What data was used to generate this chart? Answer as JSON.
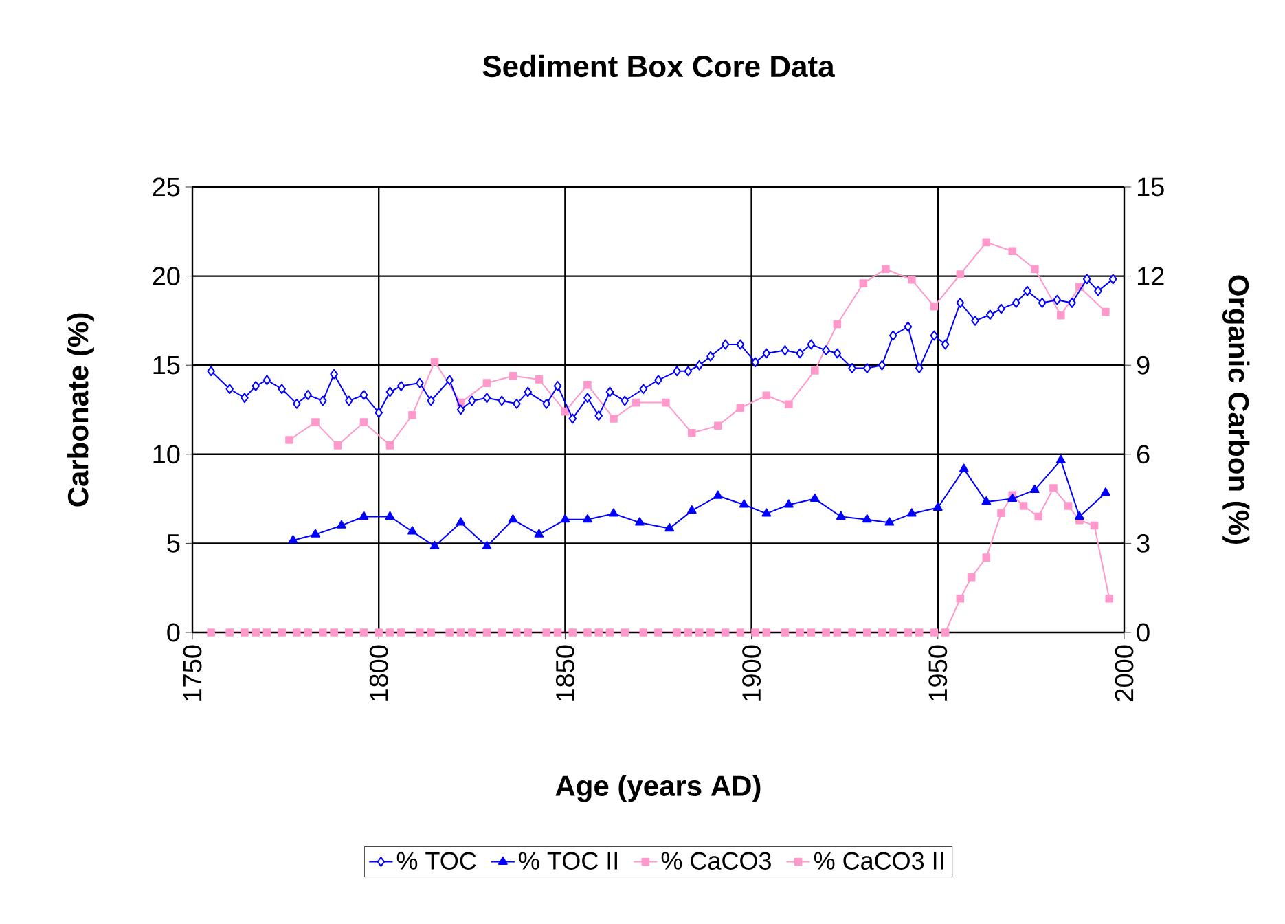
{
  "chart_data": {
    "type": "line",
    "title": "Sediment Box Core Data",
    "xlabel": "Age (years AD)",
    "ylabel": "Carbonate (%)",
    "y2label": "Organic Carbon (%)",
    "xlim": [
      1750,
      2000
    ],
    "xticks": [
      1750,
      1800,
      1850,
      1900,
      1950,
      2000
    ],
    "ylim": [
      0,
      25
    ],
    "yticks": [
      0,
      5,
      10,
      15,
      20,
      25
    ],
    "y2lim": [
      0,
      15
    ],
    "y2ticks": [
      0,
      3,
      6,
      9,
      12,
      15
    ],
    "grid": true,
    "legend": "bottom",
    "series": [
      {
        "name": "% TOC",
        "color": "#0000ff",
        "axis": "y2",
        "marker": "diamond",
        "x": [
          1755,
          1760,
          1764,
          1767,
          1770,
          1774,
          1778,
          1781,
          1785,
          1788,
          1792,
          1796,
          1800,
          1803,
          1806,
          1811,
          1814,
          1819,
          1822,
          1825,
          1829,
          1833,
          1837,
          1840,
          1845,
          1848,
          1852,
          1856,
          1859,
          1862,
          1866,
          1871,
          1875,
          1880,
          1883,
          1886,
          1889,
          1893,
          1897,
          1901,
          1904,
          1909,
          1913,
          1916,
          1920,
          1923,
          1927,
          1931,
          1935,
          1938,
          1942,
          1945,
          1949,
          1952,
          1956,
          1960,
          1964,
          1967,
          1971,
          1974,
          1978,
          1982,
          1986,
          1990,
          1993,
          1997
        ],
        "values": [
          8.8,
          8.2,
          7.9,
          8.3,
          8.5,
          8.2,
          7.7,
          8.0,
          7.8,
          8.7,
          7.8,
          8.0,
          7.4,
          8.1,
          8.3,
          8.4,
          7.8,
          8.5,
          7.5,
          7.8,
          7.9,
          7.8,
          7.7,
          8.1,
          7.7,
          8.3,
          7.2,
          7.9,
          7.3,
          8.1,
          7.8,
          8.2,
          8.5,
          8.8,
          8.8,
          9.0,
          9.3,
          9.7,
          9.7,
          9.1,
          9.4,
          9.5,
          9.4,
          9.7,
          9.5,
          9.4,
          8.9,
          8.9,
          9.0,
          10.0,
          10.3,
          8.9,
          10.0,
          9.7,
          11.1,
          10.5,
          10.7,
          10.9,
          11.1,
          11.5,
          11.1,
          11.2,
          11.1,
          11.9,
          11.5,
          11.9
        ]
      },
      {
        "name": "% TOC II",
        "color": "#0000ff",
        "axis": "y2",
        "marker": "triangle",
        "x": [
          1777,
          1783,
          1790,
          1796,
          1803,
          1809,
          1815,
          1822,
          1829,
          1836,
          1843,
          1850,
          1856,
          1863,
          1870,
          1878,
          1884,
          1891,
          1898,
          1904,
          1910,
          1917,
          1924,
          1931,
          1937,
          1943,
          1950,
          1957,
          1963,
          1970,
          1976,
          1983,
          1988,
          1995
        ],
        "values": [
          3.1,
          3.3,
          3.6,
          3.9,
          3.9,
          3.4,
          2.9,
          3.7,
          2.9,
          3.8,
          3.3,
          3.8,
          3.8,
          4.0,
          3.7,
          3.5,
          4.1,
          4.6,
          4.3,
          4.0,
          4.3,
          4.5,
          3.9,
          3.8,
          3.7,
          4.0,
          4.2,
          5.5,
          4.4,
          4.5,
          4.8,
          5.8,
          3.9,
          4.7
        ]
      },
      {
        "name": "% CaCO3",
        "color": "#ff99cc",
        "marker": "square",
        "x": [
          1755,
          1760,
          1764,
          1767,
          1770,
          1774,
          1778,
          1781,
          1785,
          1788,
          1792,
          1796,
          1800,
          1803,
          1806,
          1811,
          1814,
          1819,
          1822,
          1825,
          1829,
          1833,
          1837,
          1840,
          1845,
          1848,
          1852,
          1856,
          1859,
          1862,
          1866,
          1871,
          1875,
          1880,
          1883,
          1886,
          1889,
          1893,
          1897,
          1901,
          1904,
          1909,
          1913,
          1916,
          1920,
          1923,
          1927,
          1931,
          1935,
          1938,
          1942,
          1945,
          1949,
          1952,
          1956,
          1959,
          1963,
          1967,
          1970,
          1973,
          1977,
          1981,
          1985,
          1988,
          1992,
          1996
        ],
        "values": [
          0,
          0,
          0,
          0,
          0,
          0,
          0,
          0,
          0,
          0,
          0,
          0,
          0,
          0,
          0,
          0,
          0,
          0,
          0,
          0,
          0,
          0,
          0,
          0,
          0,
          0,
          0,
          0,
          0,
          0,
          0,
          0,
          0,
          0,
          0,
          0,
          0,
          0,
          0,
          0,
          0,
          0,
          0,
          0,
          0,
          0,
          0,
          0,
          0,
          0,
          0,
          0,
          0,
          0,
          1.9,
          3.1,
          4.2,
          6.7,
          7.7,
          7.1,
          6.5,
          8.1,
          7.1,
          6.3,
          6.0,
          1.9
        ]
      },
      {
        "name": "% CaCO3 II",
        "color": "#ff99cc",
        "marker": "square",
        "x": [
          1776,
          1783,
          1789,
          1796,
          1803,
          1809,
          1815,
          1822,
          1829,
          1836,
          1843,
          1850,
          1856,
          1863,
          1869,
          1877,
          1884,
          1891,
          1897,
          1904,
          1910,
          1917,
          1923,
          1930,
          1936,
          1943,
          1949,
          1956,
          1963,
          1970,
          1976,
          1983,
          1988,
          1995
        ],
        "values": [
          10.8,
          11.8,
          10.5,
          11.8,
          10.5,
          12.2,
          15.2,
          12.9,
          14.0,
          14.4,
          14.2,
          12.4,
          13.9,
          12.0,
          12.9,
          12.9,
          11.2,
          11.6,
          12.6,
          13.3,
          12.8,
          14.7,
          17.3,
          19.6,
          20.4,
          19.8,
          18.3,
          20.1,
          21.9,
          21.4,
          20.4,
          17.8,
          19.4,
          18.0
        ]
      }
    ]
  }
}
